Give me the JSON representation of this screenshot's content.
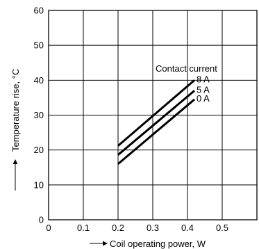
{
  "chart_data": {
    "type": "line",
    "xlabel": "Coil operating power, W",
    "ylabel": "Temperature rise, °C",
    "xlim": [
      0,
      0.6
    ],
    "ylim": [
      0,
      60
    ],
    "x_ticks": [
      0.1,
      0.2,
      0.3,
      0.4,
      0.5
    ],
    "x_tick_labels": [
      "0.1",
      "0.2",
      "0.3",
      "0.4",
      "0.5"
    ],
    "y_ticks": [
      0,
      10,
      20,
      30,
      40,
      50,
      60
    ],
    "y_tick_labels": [
      "0",
      "10",
      "20",
      "30",
      "40",
      "50",
      "60"
    ],
    "x_grid": [
      0.1,
      0.2,
      0.3,
      0.4,
      0.5
    ],
    "y_grid": [
      10,
      20,
      30,
      40,
      50
    ],
    "grid": true,
    "annotation": "Contact current",
    "series": [
      {
        "name": "8 A",
        "points": [
          [
            0.2,
            21.2
          ],
          [
            0.42,
            40.0
          ]
        ]
      },
      {
        "name": "5 A",
        "points": [
          [
            0.2,
            18.6
          ],
          [
            0.42,
            37.0
          ]
        ]
      },
      {
        "name": "0 A",
        "points": [
          [
            0.2,
            16.0
          ],
          [
            0.42,
            34.5
          ]
        ]
      }
    ],
    "origin_label": "0"
  }
}
